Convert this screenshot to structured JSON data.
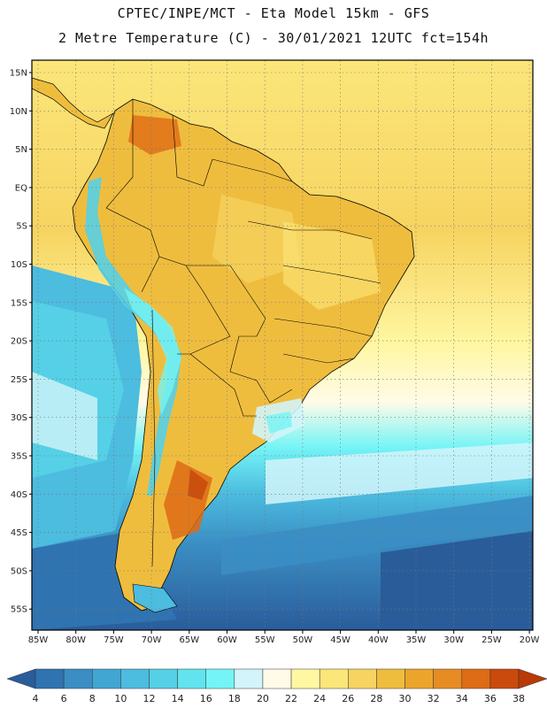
{
  "header": {
    "line1": "CPTEC/INPE/MCT -  Eta Model 15km - GFS",
    "line2": "2 Metre Temperature (C) - 30/01/2021 12UTC fct=154h"
  },
  "map": {
    "lon_labels": [
      "85W",
      "80W",
      "75W",
      "70W",
      "65W",
      "60W",
      "55W",
      "50W",
      "45W",
      "40W",
      "35W",
      "30W",
      "25W",
      "20W"
    ],
    "lat_labels": [
      "15N",
      "10N",
      "5N",
      "EQ",
      "5S",
      "10S",
      "15S",
      "20S",
      "25S",
      "30S",
      "35S",
      "40S",
      "45S",
      "50S",
      "55S"
    ]
  },
  "colorbar": {
    "levels": [
      "4",
      "6",
      "8",
      "10",
      "12",
      "14",
      "16",
      "18",
      "20",
      "22",
      "24",
      "26",
      "28",
      "30",
      "32",
      "34",
      "36",
      "38"
    ],
    "colors": [
      "#2a5c9a",
      "#2f73b0",
      "#3a8ec4",
      "#42a6d2",
      "#4cbcdf",
      "#55d0e6",
      "#61e4ee",
      "#74f4f6",
      "#d2f4fa",
      "#fffbe8",
      "#fff7a2",
      "#fbe67a",
      "#f7d461",
      "#efbd3e",
      "#eca52a",
      "#e78c22",
      "#de6b15",
      "#c94a0c",
      "#b83a08"
    ]
  }
}
